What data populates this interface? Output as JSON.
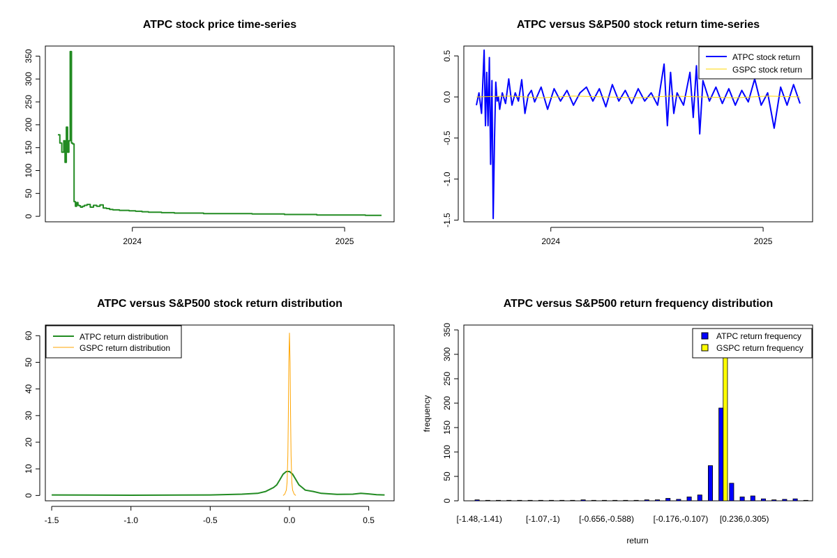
{
  "chart_data": [
    {
      "id": "price",
      "type": "line",
      "title": "ATPC stock price time-series",
      "xlabel": "",
      "ylabel": "",
      "x_ticks": [
        "2024",
        "2025"
      ],
      "x_tick_values": [
        0.23,
        0.886
      ],
      "xlim": [
        0,
        1
      ],
      "y_ticks": [
        0,
        50,
        100,
        150,
        200,
        250,
        300,
        350
      ],
      "ylim": [
        -12,
        372
      ],
      "color": "#228B22",
      "series": [
        {
          "name": "ATPC price",
          "x": [
            0.0,
            0.006,
            0.012,
            0.018,
            0.022,
            0.026,
            0.03,
            0.034,
            0.038,
            0.042,
            0.046,
            0.05,
            0.054,
            0.058,
            0.062,
            0.066,
            0.07,
            0.076,
            0.082,
            0.09,
            0.1,
            0.11,
            0.12,
            0.13,
            0.14,
            0.15,
            0.16,
            0.17,
            0.18,
            0.19,
            0.2,
            0.22,
            0.24,
            0.26,
            0.28,
            0.3,
            0.32,
            0.34,
            0.36,
            0.4,
            0.45,
            0.5,
            0.55,
            0.6,
            0.65,
            0.7,
            0.75,
            0.8,
            0.85,
            0.9,
            0.95,
            1.0
          ],
          "values": [
            178,
            160,
            140,
            165,
            118,
            195,
            140,
            165,
            360,
            160,
            158,
            32,
            22,
            30,
            24,
            23,
            20,
            22,
            24,
            26,
            20,
            24,
            22,
            25,
            18,
            17,
            15,
            14,
            14,
            13,
            13,
            12,
            11,
            10,
            9,
            9,
            8,
            8,
            7,
            7,
            6,
            6,
            6,
            5,
            5,
            4,
            4,
            3,
            3,
            3,
            2,
            2
          ]
        }
      ]
    },
    {
      "id": "returns",
      "type": "line",
      "title": "ATPC versus S&P500 stock return time-series",
      "xlabel": "",
      "ylabel": "",
      "x_ticks": [
        "2024",
        "2025"
      ],
      "x_tick_values": [
        0.23,
        0.886
      ],
      "xlim": [
        0,
        1
      ],
      "y_ticks": [
        -1.5,
        -1.0,
        -0.5,
        0.0,
        0.5
      ],
      "y_tick_labels": [
        "-1.5",
        "-1.0",
        "-0.5",
        "0.0",
        "0.5"
      ],
      "ylim": [
        -1.52,
        0.62
      ],
      "legend": {
        "position": "top-right",
        "entries": [
          "ATPC stock return",
          "GSPC stock return"
        ]
      },
      "series": [
        {
          "name": "ATPC stock return",
          "color": "#0000FF",
          "x": [
            0.0,
            0.008,
            0.016,
            0.024,
            0.028,
            0.032,
            0.036,
            0.04,
            0.044,
            0.048,
            0.052,
            0.056,
            0.06,
            0.064,
            0.068,
            0.072,
            0.08,
            0.09,
            0.1,
            0.11,
            0.12,
            0.13,
            0.14,
            0.15,
            0.16,
            0.17,
            0.18,
            0.2,
            0.22,
            0.24,
            0.26,
            0.28,
            0.3,
            0.32,
            0.34,
            0.36,
            0.38,
            0.4,
            0.42,
            0.44,
            0.46,
            0.48,
            0.5,
            0.52,
            0.54,
            0.56,
            0.58,
            0.59,
            0.6,
            0.61,
            0.62,
            0.64,
            0.66,
            0.67,
            0.68,
            0.69,
            0.7,
            0.72,
            0.74,
            0.76,
            0.78,
            0.8,
            0.82,
            0.84,
            0.86,
            0.88,
            0.9,
            0.92,
            0.94,
            0.96,
            0.98,
            1.0
          ],
          "values": [
            -0.1,
            0.05,
            -0.2,
            0.57,
            -0.35,
            0.3,
            -0.35,
            0.48,
            -0.82,
            0.2,
            -1.48,
            -0.5,
            0.18,
            -0.05,
            0.0,
            -0.15,
            0.05,
            -0.08,
            0.22,
            -0.1,
            0.05,
            -0.05,
            0.21,
            -0.2,
            0.02,
            0.08,
            -0.06,
            0.12,
            -0.15,
            0.1,
            -0.05,
            0.08,
            -0.1,
            0.05,
            0.12,
            -0.05,
            0.1,
            -0.12,
            0.15,
            -0.05,
            0.08,
            -0.08,
            0.1,
            -0.05,
            0.05,
            -0.1,
            0.4,
            -0.35,
            0.3,
            -0.2,
            0.05,
            -0.1,
            0.3,
            -0.25,
            0.38,
            -0.45,
            0.2,
            -0.05,
            0.12,
            -0.08,
            0.1,
            -0.1,
            0.08,
            -0.06,
            0.22,
            -0.1,
            0.05,
            -0.38,
            0.12,
            -0.1,
            0.15,
            -0.08
          ]
        },
        {
          "name": "GSPC stock return",
          "color": "#FFD700",
          "x": [
            0.0,
            0.1,
            0.2,
            0.3,
            0.4,
            0.5,
            0.6,
            0.7,
            0.8,
            0.9,
            1.0
          ],
          "values": [
            0.0,
            0.01,
            -0.01,
            0.01,
            0.0,
            -0.01,
            0.01,
            0.0,
            -0.01,
            0.01,
            0.0
          ]
        }
      ]
    },
    {
      "id": "density",
      "type": "line",
      "title": "ATPC versus S&P500 stock return distribution",
      "xlabel": "",
      "ylabel": "",
      "x_ticks": [
        -1.5,
        -1.0,
        -0.5,
        0.0,
        0.5
      ],
      "x_tick_labels": [
        "-1.5",
        "-1.0",
        "-0.5",
        "0.0",
        "0.5"
      ],
      "xlim": [
        -1.54,
        0.66
      ],
      "y_ticks": [
        0,
        10,
        20,
        30,
        40,
        50,
        60
      ],
      "ylim": [
        -2,
        64
      ],
      "legend": {
        "position": "top-left",
        "entries": [
          "ATPC return distribution",
          "GSPC return distribution"
        ]
      },
      "series": [
        {
          "name": "ATPC return distribution",
          "color": "#228B22",
          "x": [
            -1.5,
            -1.0,
            -0.5,
            -0.3,
            -0.2,
            -0.15,
            -0.1,
            -0.08,
            -0.06,
            -0.04,
            -0.02,
            0.0,
            0.02,
            0.04,
            0.06,
            0.08,
            0.1,
            0.15,
            0.2,
            0.3,
            0.4,
            0.45,
            0.5,
            0.55,
            0.6
          ],
          "values": [
            0.2,
            0.1,
            0.2,
            0.5,
            0.8,
            1.5,
            3,
            4,
            6,
            8,
            9,
            9,
            8,
            6,
            4,
            3,
            2,
            1.5,
            0.8,
            0.4,
            0.5,
            0.8,
            0.6,
            0.3,
            0.2
          ]
        },
        {
          "name": "GSPC return distribution",
          "color": "#FFA500",
          "x": [
            -0.04,
            -0.03,
            -0.02,
            -0.015,
            -0.01,
            -0.007,
            -0.004,
            0.0,
            0.004,
            0.007,
            0.01,
            0.015,
            0.02,
            0.03,
            0.04
          ],
          "values": [
            0,
            0.5,
            2,
            5,
            15,
            30,
            50,
            61,
            50,
            30,
            15,
            5,
            2,
            0.5,
            0
          ]
        }
      ]
    },
    {
      "id": "histogram",
      "type": "bar",
      "title": "ATPC versus S&P500 return frequency distribution",
      "xlabel": "return",
      "ylabel": "frequency",
      "x_tick_labels": [
        "[-1.48,-1.41)",
        "[-1.07,-1)",
        "[-0.656,-0.588)",
        "[-0.176,-0.107)",
        "[0.236,0.305)"
      ],
      "x_tick_bins": [
        0,
        6,
        12,
        19,
        25
      ],
      "y_ticks": [
        0,
        50,
        100,
        150,
        200,
        250,
        300,
        350
      ],
      "ylim": [
        0,
        360
      ],
      "legend": {
        "position": "top-right",
        "entries": [
          "ATPC return frequency",
          "GSPC return frequency"
        ]
      },
      "series": [
        {
          "name": "ATPC return frequency",
          "color": "#0000FF",
          "values": [
            2,
            1,
            1,
            1,
            1,
            1,
            1,
            1,
            1,
            1,
            2,
            1,
            1,
            1,
            1,
            1,
            2,
            2,
            5,
            3,
            8,
            12,
            72,
            190,
            36,
            8,
            10,
            4,
            2,
            3,
            4,
            1
          ]
        },
        {
          "name": "GSPC return frequency",
          "color": "#FFFF00",
          "values": [
            0,
            0,
            0,
            0,
            0,
            0,
            0,
            0,
            0,
            0,
            0,
            0,
            0,
            0,
            0,
            0,
            0,
            0,
            0,
            0,
            0,
            0,
            0,
            300,
            0,
            0,
            0,
            0,
            0,
            0,
            0,
            0
          ]
        }
      ]
    }
  ]
}
